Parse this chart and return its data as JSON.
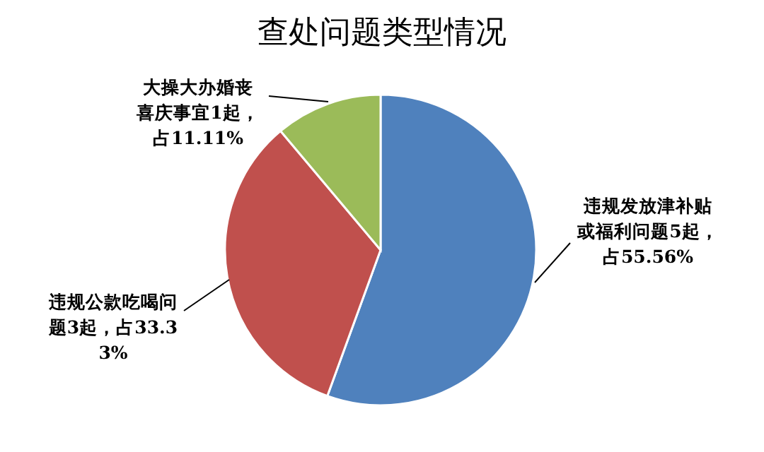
{
  "chart_data": {
    "type": "pie",
    "title": "查处问题类型情况",
    "categories": [
      "违规发放津补贴或福利问题5起，占55.56%",
      "违规公款吃喝问题3起，占33.33%",
      "大操大办婚丧喜庆事宜1起，占11.11%"
    ],
    "values": [
      55.56,
      33.33,
      11.11
    ],
    "colors": [
      "#4f81bd",
      "#c0504d",
      "#9bbb59"
    ],
    "legend": false
  }
}
